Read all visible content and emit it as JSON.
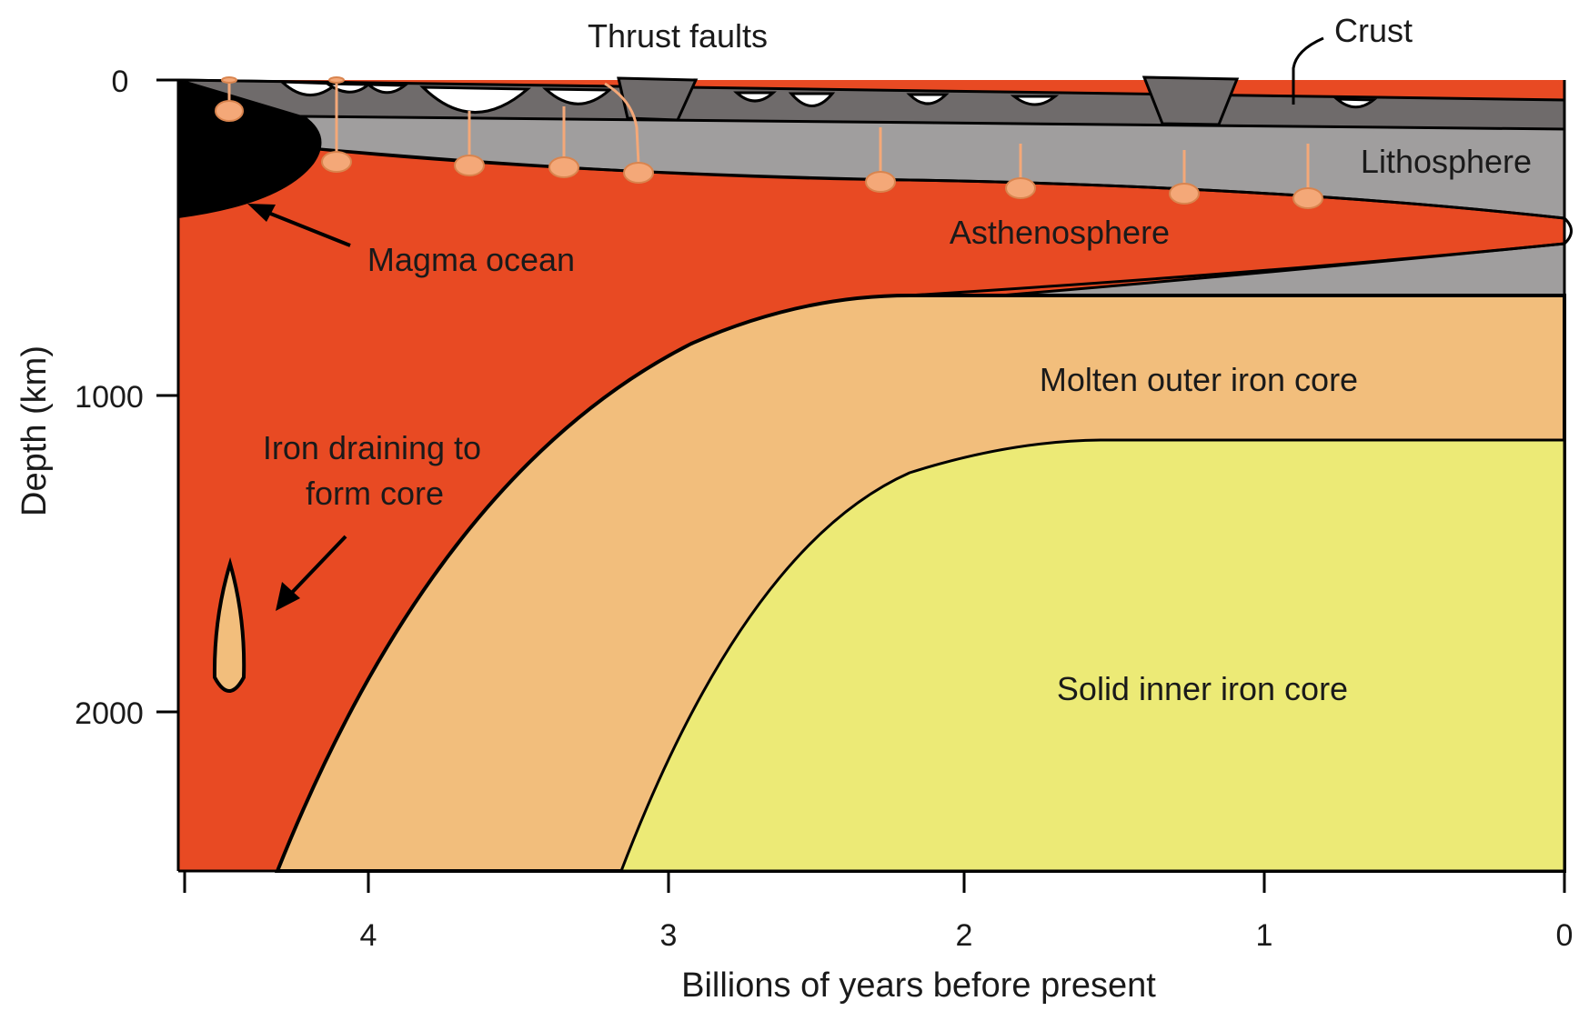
{
  "axes": {
    "x_title": "Billions of years before present",
    "y_title": "Depth (km)",
    "x_ticks": [
      "4",
      "3",
      "2",
      "1",
      "0"
    ],
    "y_ticks": [
      "0",
      "1000",
      "2000"
    ]
  },
  "labels": {
    "thrust_faults": "Thrust faults",
    "crust": "Crust",
    "lithosphere": "Lithosphere",
    "asthenosphere": "Asthenosphere",
    "magma_ocean": "Magma ocean",
    "molten_outer_core": "Molten outer iron core",
    "iron_draining_line1": "Iron draining to",
    "iron_draining_line2": "form core",
    "solid_inner_core": "Solid inner iron core"
  },
  "colors": {
    "crust": "#6f6b6b",
    "lithosphere": "#a09e9e",
    "asthenosphere": "#e84a23",
    "magma_ocean": "#000000",
    "outer_core": "#f2be7c",
    "inner_core": "#ecea76",
    "diapir": "#f4a878"
  }
}
